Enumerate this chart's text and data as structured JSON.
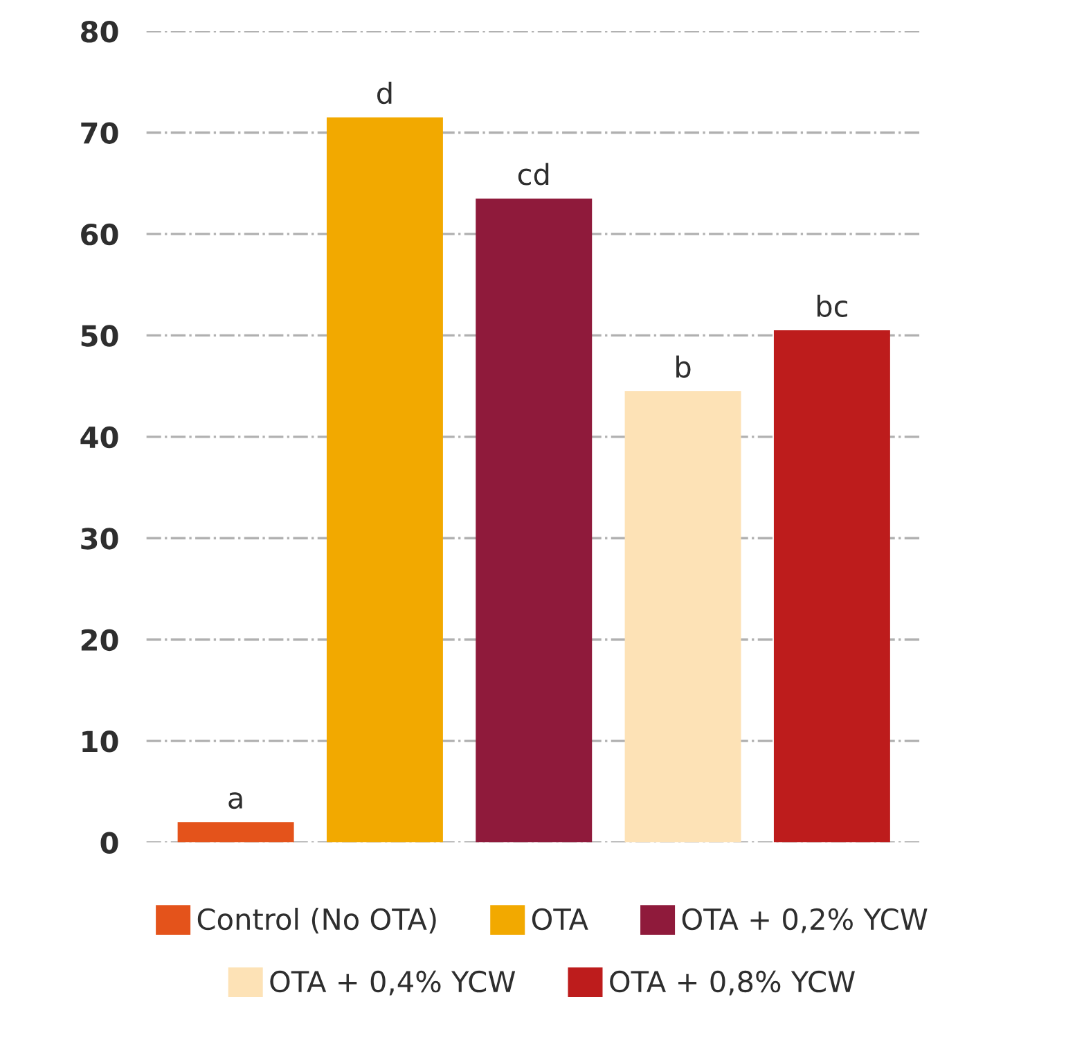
{
  "chart_data": {
    "type": "bar",
    "categories": [
      null,
      null,
      null,
      null,
      null
    ],
    "series": [
      {
        "name": "Control (No OTA)",
        "color": "#e4531b",
        "values": [
          2,
          null,
          null,
          null,
          null
        ]
      },
      {
        "name": "OTA",
        "color": "#f2a900",
        "values": [
          null,
          71.5,
          null,
          null,
          null
        ]
      },
      {
        "name": "OTA + 0,2% YCW",
        "color": "#8f1a3b",
        "values": [
          null,
          null,
          63.5,
          null,
          null
        ]
      },
      {
        "name": "OTA + 0,4% YCW",
        "color": "#fde2b6",
        "values": [
          null,
          null,
          null,
          44.5,
          null
        ]
      },
      {
        "name": "OTA + 0,8% YCW",
        "color": "#bd1c1c",
        "values": [
          null,
          null,
          null,
          null,
          50.5
        ]
      }
    ],
    "annotations": [
      {
        "text": "a",
        "y": 2
      },
      {
        "text": "d",
        "y": 71.5
      },
      {
        "text": "cd",
        "y": 63.5
      },
      {
        "text": "b",
        "y": 44.5
      },
      {
        "text": "bc",
        "y": 50.5
      }
    ],
    "ylim": [
      0,
      80
    ],
    "yticks": [
      0,
      10,
      20,
      30,
      40,
      50,
      60,
      70,
      80
    ],
    "grid": "y",
    "legend": "bottom"
  }
}
